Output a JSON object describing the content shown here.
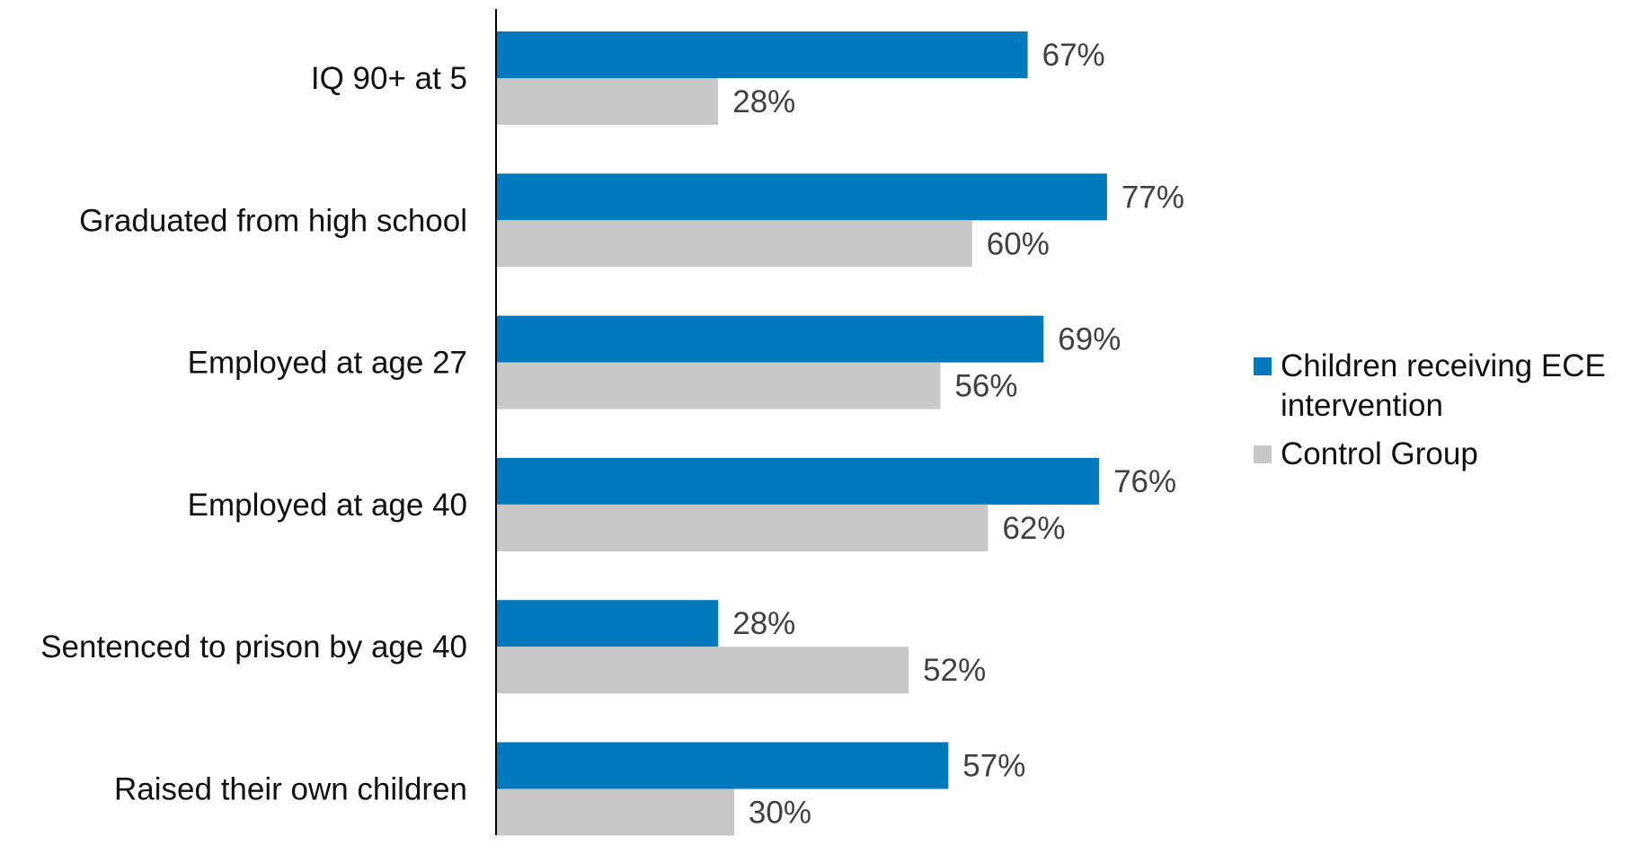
{
  "chart_data": {
    "type": "bar",
    "orientation": "horizontal",
    "categories": [
      "IQ 90+ at 5",
      "Graduated from high school",
      "Employed at age 27",
      "Employed at age 40",
      "Sentenced to prison by age 40",
      "Raised their own children"
    ],
    "series": [
      {
        "name": "Children receiving ECE intervention",
        "legend_lines": [
          "Children receiving ECE",
          "intervention"
        ],
        "color": "#0079bd",
        "values": [
          67,
          77,
          69,
          76,
          28,
          57
        ],
        "labels": [
          "67%",
          "77%",
          "69%",
          "76%",
          "28%",
          "57%"
        ]
      },
      {
        "name": "Control Group",
        "legend_lines": [
          "Control Group"
        ],
        "color": "#c8c8c8",
        "values": [
          28,
          60,
          56,
          62,
          52,
          30
        ],
        "labels": [
          "28%",
          "60%",
          "56%",
          "62%",
          "52%",
          "30%"
        ]
      }
    ],
    "xlim": [
      0,
      100
    ],
    "unit": "%",
    "grid": false,
    "legend_position": "right"
  }
}
